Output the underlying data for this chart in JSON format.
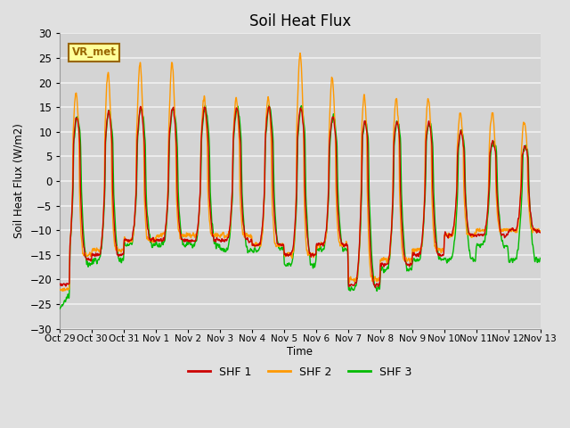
{
  "title": "Soil Heat Flux",
  "ylabel": "Soil Heat Flux (W/m2)",
  "xlabel": "Time",
  "ylim": [
    -30,
    30
  ],
  "background_color": "#e0e0e0",
  "plot_bg_color": "#d4d4d4",
  "grid_color": "#f0f0f0",
  "yticks": [
    -30,
    -25,
    -20,
    -15,
    -10,
    -5,
    0,
    5,
    10,
    15,
    20,
    25,
    30
  ],
  "xtick_labels": [
    "Oct 29",
    "Oct 30",
    "Oct 31",
    "Nov 1",
    "Nov 2",
    "Nov 3",
    "Nov 4",
    "Nov 5",
    "Nov 6",
    "Nov 7",
    "Nov 8",
    "Nov 9",
    "Nov 10",
    "Nov 11",
    "Nov 12",
    "Nov 13"
  ],
  "legend_labels": [
    "SHF 1",
    "SHF 2",
    "SHF 3"
  ],
  "line_colors": [
    "#cc0000",
    "#ff9900",
    "#00bb00"
  ],
  "watermark_text": "VR_met",
  "watermark_bg": "#ffff99",
  "watermark_border": "#996600",
  "line_width": 1.0,
  "n_days": 15,
  "points_per_day": 144,
  "day_peak_amps_shf2": [
    18,
    22,
    24,
    24,
    17,
    17,
    17,
    26,
    21,
    17,
    17,
    17,
    14,
    14,
    12
  ],
  "day_peak_amps_shf1": [
    13,
    14,
    15,
    15,
    15,
    15,
    15,
    15,
    13,
    12,
    12,
    12,
    10,
    8,
    7
  ],
  "day_trough_shf1": [
    -16,
    -15,
    -12,
    -12,
    -12,
    -12,
    -13,
    -15,
    -13,
    -21,
    -17,
    -15,
    -11,
    -11,
    -10
  ],
  "day_trough_shf2": [
    -15,
    -14,
    -12,
    -11,
    -11,
    -11,
    -13,
    -15,
    -13,
    -20,
    -16,
    -14,
    -11,
    -10,
    -10
  ],
  "day_trough_shf3": [
    -17,
    -16,
    -13,
    -13,
    -13,
    -14,
    -14,
    -17,
    -14,
    -22,
    -18,
    -16,
    -16,
    -13,
    -16
  ]
}
